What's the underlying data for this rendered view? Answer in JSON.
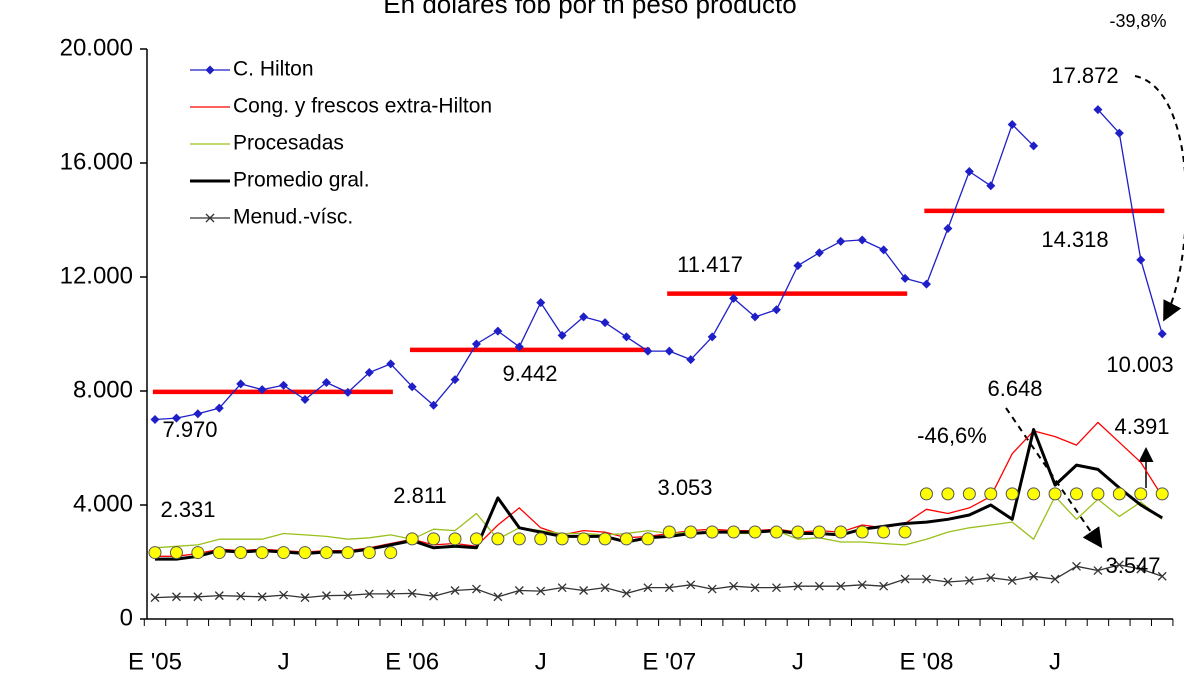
{
  "chart_data": {
    "type": "line",
    "title": "En dólares fob por tn peso producto",
    "categories": [
      "E '05",
      null,
      null,
      null,
      null,
      null,
      "J",
      null,
      null,
      null,
      null,
      null,
      "E '06",
      null,
      null,
      null,
      null,
      null,
      "J",
      null,
      null,
      null,
      null,
      null,
      "E '07",
      null,
      null,
      null,
      null,
      null,
      "J",
      null,
      null,
      null,
      null,
      null,
      "E '08",
      null,
      null,
      null,
      null,
      null,
      "J",
      null,
      null,
      null,
      null,
      null
    ],
    "ylim": [
      0,
      20000
    ],
    "yticks": [
      0,
      {
        "value": 4000,
        "label": "4.000"
      },
      {
        "value": 8000,
        "label": "8.000"
      },
      {
        "value": 12000,
        "label": "12.000"
      },
      {
        "value": 16000,
        "label": "16.000"
      },
      {
        "value": 20000,
        "label": "20.000"
      }
    ],
    "series": [
      {
        "name": "C. Hilton",
        "color": "#1f1fc8",
        "marker": "diamond",
        "values": [
          7000,
          7050,
          7200,
          7400,
          8250,
          8050,
          8200,
          7700,
          8300,
          7950,
          8650,
          8950,
          8150,
          7500,
          8400,
          9650,
          10100,
          9550,
          11100,
          9950,
          10600,
          10400,
          9900,
          9400,
          9400,
          9100,
          9900,
          11250,
          10600,
          10850,
          12400,
          12850,
          13250,
          13300,
          12950,
          11950,
          11750,
          13700,
          15700,
          15200,
          17350,
          16600,
          null,
          null,
          17872,
          17050,
          12600,
          10003
        ],
        "value_labels": [
          null,
          null,
          null,
          null,
          null,
          null,
          null,
          null,
          null,
          null,
          null,
          null,
          null,
          null,
          null,
          null,
          null,
          null,
          null,
          null,
          null,
          null,
          null,
          null,
          null,
          null,
          null,
          null,
          null,
          null,
          null,
          null,
          null,
          null,
          null,
          null,
          null,
          null,
          null,
          null,
          null,
          null,
          null,
          null,
          "17.872",
          null,
          null,
          "10.003"
        ]
      },
      {
        "name": "Cong. y frescos extra-Hilton",
        "color": "#ff0000",
        "values": [
          2200,
          2200,
          2300,
          2450,
          2400,
          2450,
          2400,
          2350,
          2400,
          2400,
          2500,
          2650,
          2800,
          2600,
          2650,
          2550,
          3300,
          3900,
          3200,
          2950,
          3100,
          3050,
          2850,
          2900,
          3000,
          3100,
          3150,
          3100,
          3100,
          3150,
          3050,
          3100,
          3050,
          3300,
          3200,
          3350,
          3850,
          3700,
          3900,
          4300,
          5800,
          6600,
          6400,
          6100,
          6900,
          6200,
          5500,
          4300
        ]
      },
      {
        "name": "Procesadas",
        "color": "#99c01a",
        "values": [
          2500,
          2550,
          2600,
          2800,
          2800,
          2800,
          3000,
          2950,
          2900,
          2800,
          2850,
          2950,
          2800,
          3150,
          3100,
          3700,
          2800,
          3200,
          3100,
          3000,
          3000,
          2950,
          3000,
          3100,
          3000,
          3050,
          3050,
          3000,
          3000,
          3100,
          2800,
          2850,
          2700,
          2700,
          2650,
          2600,
          2800,
          3050,
          3200,
          3300,
          3400,
          2800,
          4300,
          3500,
          4200,
          3600,
          4100,
          3500
        ]
      },
      {
        "name": "Promedio gral.",
        "color": "#000000",
        "width": 3,
        "values": [
          2100,
          2100,
          2200,
          2400,
          2350,
          2400,
          2350,
          2300,
          2350,
          2350,
          2450,
          2600,
          2750,
          2500,
          2550,
          2500,
          4250,
          3200,
          3050,
          2900,
          2900,
          2900,
          2700,
          2850,
          2900,
          3000,
          3050,
          3050,
          3050,
          3100,
          3000,
          3000,
          2950,
          3150,
          3250,
          3350,
          3400,
          3500,
          3650,
          4000,
          3500,
          6648,
          4700,
          5400,
          5250,
          4600,
          4000,
          3547
        ],
        "value_labels": [
          null,
          null,
          null,
          null,
          null,
          null,
          null,
          null,
          null,
          null,
          null,
          null,
          null,
          null,
          null,
          null,
          null,
          null,
          null,
          null,
          null,
          null,
          null,
          null,
          null,
          null,
          null,
          null,
          null,
          null,
          null,
          null,
          null,
          null,
          null,
          null,
          null,
          null,
          null,
          null,
          null,
          "6.648",
          null,
          null,
          null,
          null,
          null,
          "3.547"
        ]
      },
      {
        "name": "Menud.-vísc.",
        "color": "#333333",
        "marker": "x",
        "values": [
          750,
          780,
          780,
          820,
          800,
          780,
          840,
          750,
          820,
          830,
          880,
          880,
          900,
          800,
          1000,
          1050,
          780,
          1000,
          980,
          1100,
          1000,
          1100,
          900,
          1100,
          1100,
          1200,
          1050,
          1150,
          1100,
          1100,
          1150,
          1150,
          1150,
          1200,
          1150,
          1400,
          1400,
          1300,
          1350,
          1450,
          1350,
          1500,
          1400,
          1850,
          1700,
          1900,
          1750,
          1500
        ]
      }
    ],
    "hilton_annual_average": {
      "color": "#ff0000",
      "values": [
        7970,
        9442,
        11417,
        14318
      ],
      "value_labels": [
        "7.970",
        "9.442",
        "11.417",
        "14.318"
      ]
    },
    "general_annual_average": {
      "color": "#ffff00",
      "values": [
        2331,
        2811,
        3053,
        4391
      ],
      "value_labels": [
        "2.331",
        "2.811",
        "3.053",
        "4.391"
      ]
    },
    "annotations": [
      "-39,8%",
      "-46,6%"
    ],
    "legend": "upper left"
  }
}
